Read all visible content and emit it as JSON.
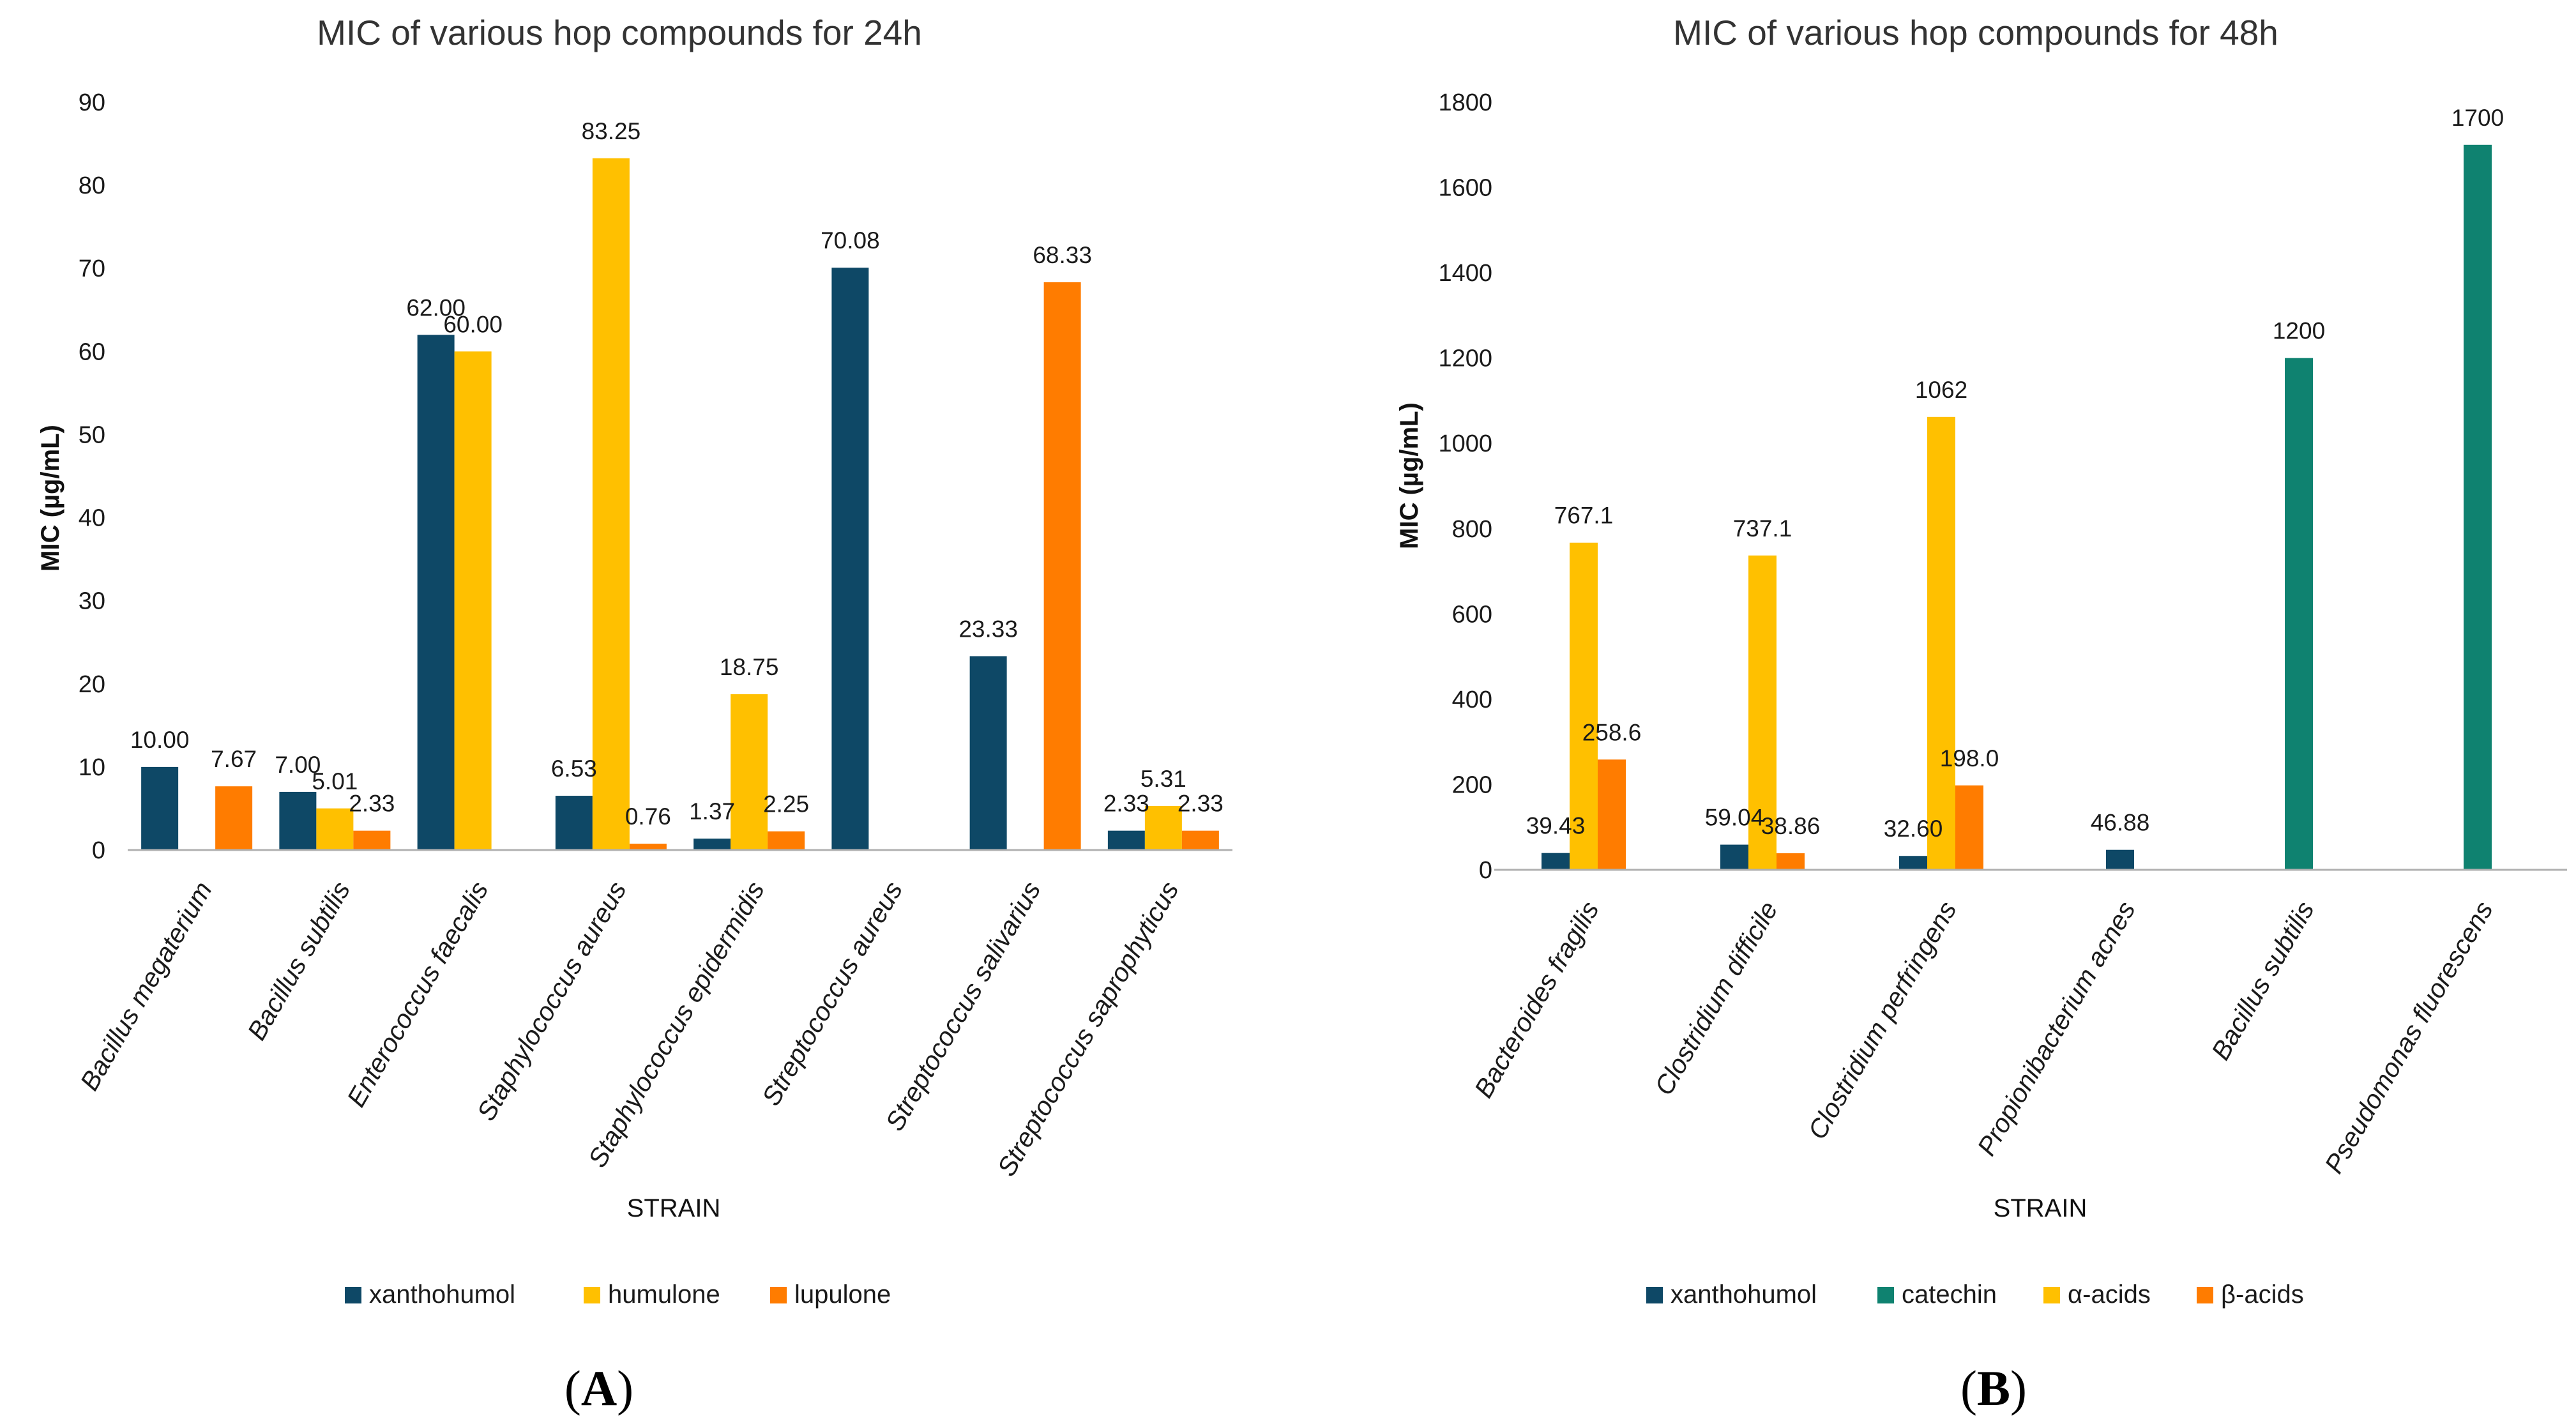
{
  "colors": {
    "xanthohumol": "#0e4866",
    "humulone": "#ffc000",
    "lupulone": "#ff7c00",
    "catechin": "#0f8270",
    "alpha_acids": "#ffc000",
    "beta_acids": "#ff7c00",
    "axis": "#b0b0b0",
    "text": "#1a1a1a"
  },
  "chart_data": [
    {
      "type": "bar",
      "panel": "A",
      "title": "MIC of various hop compounds for 24h",
      "xlabel": "STRAIN",
      "ylabel": "MIC (µg/mL)",
      "ylim": [
        0,
        90
      ],
      "ytick_step": 10,
      "grid": false,
      "legend_position": "bottom",
      "categories": [
        "Bacillus megaterium",
        "Bacillus subtilis",
        "Enterococcus faecalis",
        "Staphylococcus aureus",
        "Staphylococcus epidermidis",
        "Streptococcus aureus",
        "Streptococcus salivarius",
        "Streptococcus saprophyticus"
      ],
      "series": [
        {
          "name": "xanthohumol",
          "color_key": "xanthohumol",
          "values": [
            10.0,
            7.0,
            62.0,
            6.53,
            1.37,
            70.08,
            23.33,
            2.33
          ],
          "labels": [
            "10.00",
            "7.00",
            "62.00",
            "6.53",
            "1.37",
            "70.08",
            "23.33",
            "2.33"
          ]
        },
        {
          "name": "humulone",
          "color_key": "humulone",
          "values": [
            null,
            5.01,
            60.0,
            83.25,
            18.75,
            null,
            null,
            5.31
          ],
          "labels": [
            null,
            "5.01",
            "60.00",
            "83.25",
            "18.75",
            null,
            null,
            "5.31"
          ]
        },
        {
          "name": "lupulone",
          "color_key": "lupulone",
          "values": [
            7.67,
            2.33,
            null,
            0.76,
            2.25,
            null,
            68.33,
            2.33
          ],
          "labels": [
            "7.67",
            "2.33",
            null,
            "0.76",
            "2.25",
            null,
            "68.33",
            "2.33"
          ]
        }
      ]
    },
    {
      "type": "bar",
      "panel": "B",
      "title": "MIC of various hop compounds for 48h",
      "xlabel": "STRAIN",
      "ylabel": "MIC (µg/mL)",
      "ylim": [
        0,
        1800
      ],
      "ytick_step": 200,
      "grid": false,
      "legend_position": "bottom",
      "categories": [
        "Bacteroides fragilis",
        "Clostridium difficile",
        "Clostridium perfringens",
        "Propionibacterium acnes",
        "Bacillus subtilis",
        "Pseudomonas fluorescens"
      ],
      "series": [
        {
          "name": "xanthohumol",
          "color_key": "xanthohumol",
          "values": [
            39.43,
            59.04,
            32.6,
            46.88,
            null,
            null
          ],
          "labels": [
            "39.43",
            "59.04",
            "32.60",
            "46.88",
            null,
            null
          ]
        },
        {
          "name": "catechin",
          "color_key": "catechin",
          "values": [
            null,
            null,
            null,
            null,
            1200,
            1700
          ],
          "labels": [
            null,
            null,
            null,
            null,
            "1200",
            "1700"
          ]
        },
        {
          "name": "α-acids",
          "color_key": "alpha_acids",
          "values": [
            767.1,
            737.1,
            1062,
            null,
            null,
            null
          ],
          "labels": [
            "767.1",
            "737.1",
            "1062",
            null,
            null,
            null
          ]
        },
        {
          "name": "β-acids",
          "color_key": "beta_acids",
          "values": [
            258.6,
            38.86,
            198.0,
            null,
            null,
            null
          ],
          "labels": [
            "258.6",
            "38.86",
            "198.0",
            null,
            null,
            null
          ]
        }
      ]
    }
  ],
  "panel_labels": {
    "A": {
      "open": "(",
      "letter": "A",
      "close": ")"
    },
    "B": {
      "open": "(",
      "letter": "B",
      "close": ")"
    }
  }
}
